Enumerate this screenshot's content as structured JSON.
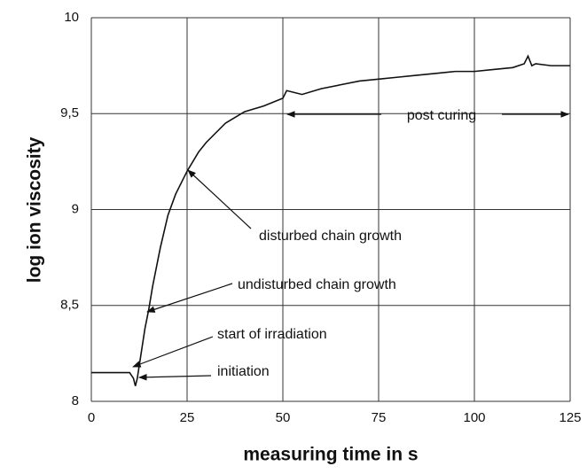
{
  "chart_data": {
    "type": "line",
    "x_label": "measuring time in s",
    "y_label": "log ion viscosity",
    "x": [
      0,
      5,
      10,
      11,
      11.5,
      12,
      13,
      14,
      15,
      16,
      18,
      20,
      22,
      25,
      28,
      30,
      35,
      40,
      45,
      50,
      51,
      55,
      60,
      65,
      70,
      75,
      80,
      85,
      90,
      95,
      100,
      105,
      110,
      113,
      114,
      115,
      116,
      120,
      125
    ],
    "series": [
      {
        "name": "log ion viscosity",
        "color": "#111111",
        "values": [
          8.15,
          8.15,
          8.15,
          8.12,
          8.08,
          8.12,
          8.25,
          8.38,
          8.48,
          8.6,
          8.8,
          8.97,
          9.08,
          9.2,
          9.3,
          9.35,
          9.45,
          9.51,
          9.54,
          9.58,
          9.62,
          9.6,
          9.63,
          9.65,
          9.67,
          9.68,
          9.69,
          9.7,
          9.71,
          9.72,
          9.72,
          9.73,
          9.74,
          9.76,
          9.8,
          9.75,
          9.76,
          9.75,
          9.75
        ]
      }
    ],
    "xlim": [
      0,
      125
    ],
    "xticks": [
      0,
      25,
      50,
      75,
      100,
      125
    ],
    "ylim": [
      8,
      10
    ],
    "yticks": [
      8,
      {
        "value": 8.5,
        "label": "8,5"
      },
      9,
      {
        "value": 9.5,
        "label": "9,5"
      },
      10
    ],
    "grid": true,
    "annotations": [
      "post curing",
      "disturbed chain growth",
      "undisturbed chain growth",
      "start of irradiation",
      "initiation"
    ]
  }
}
